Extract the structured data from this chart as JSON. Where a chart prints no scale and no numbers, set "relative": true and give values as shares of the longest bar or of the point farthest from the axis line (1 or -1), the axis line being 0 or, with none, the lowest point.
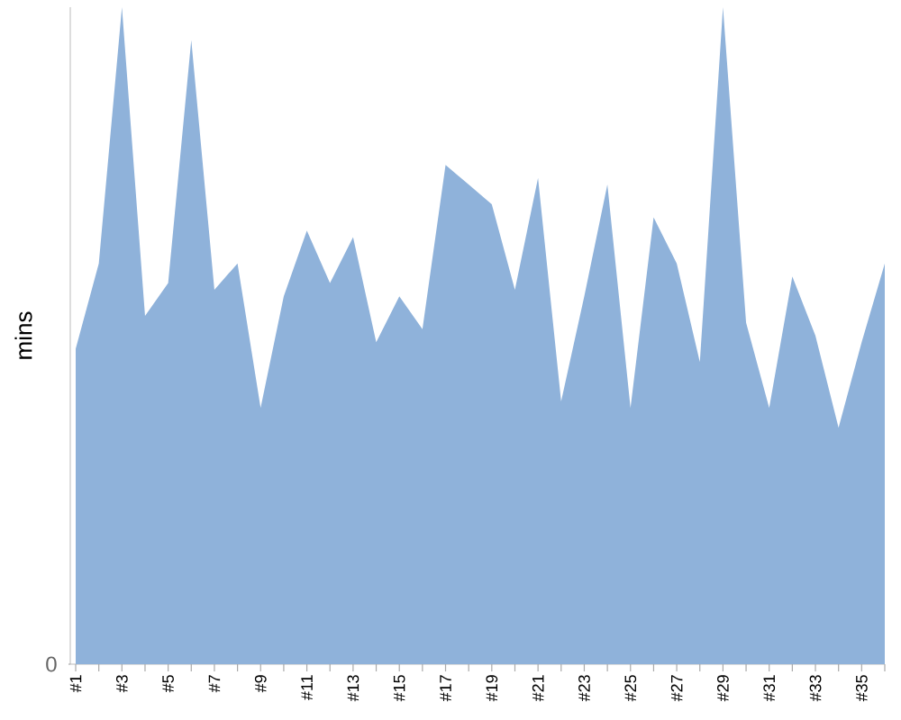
{
  "chart_data": {
    "type": "area",
    "ylabel": "mins",
    "relative": true,
    "categories": [
      "#1",
      null,
      "#3",
      null,
      "#5",
      null,
      "#7",
      null,
      "#9",
      null,
      "#11",
      null,
      "#13",
      null,
      "#15",
      null,
      "#17",
      null,
      "#19",
      null,
      "#21",
      null,
      "#23",
      null,
      "#25",
      null,
      "#27",
      null,
      "#29",
      null,
      "#31",
      null,
      "#33",
      null,
      "#35",
      null
    ],
    "values": [
      0.48,
      0.61,
      1,
      0.53,
      0.58,
      0.95,
      0.57,
      0.61,
      0.39,
      0.56,
      0.66,
      0.58,
      0.65,
      0.49,
      0.56,
      0.51,
      0.76,
      0.73,
      0.7,
      0.57,
      0.74,
      0.4,
      0.56,
      0.73,
      0.39,
      0.68,
      0.61,
      0.46,
      1,
      0.52,
      0.39,
      0.59,
      0.5,
      0.36,
      0.49,
      0.61
    ],
    "color": "#8fb2da",
    "annotations": [
      "0"
    ]
  }
}
